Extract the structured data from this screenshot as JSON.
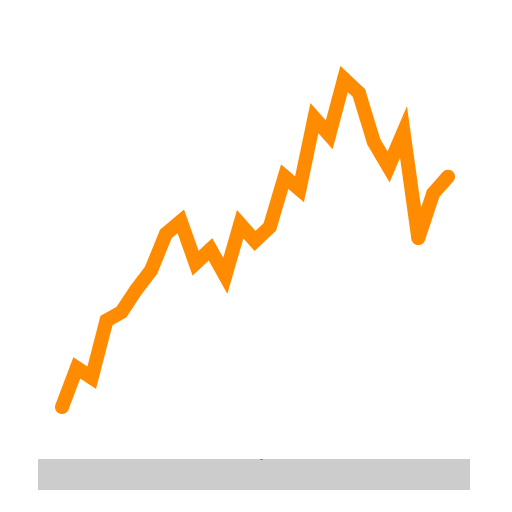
{
  "colors": {
    "line": "#ff8c00",
    "background": "#ffffff",
    "bar": "#cccccc"
  },
  "chart_data": {
    "type": "line",
    "x": [
      0,
      1,
      2,
      3,
      4,
      5,
      6,
      7,
      8,
      9,
      10,
      11,
      12,
      13,
      14,
      15,
      16,
      17,
      18,
      19,
      20,
      21,
      22,
      23,
      24,
      25,
      26
    ],
    "series": [
      {
        "values": [
          5,
          33,
          26,
          67,
          73,
          89,
          103,
          129,
          138,
          108,
          118,
          99,
          136,
          124,
          134,
          170,
          161,
          212,
          200,
          240,
          230,
          195,
          177,
          202,
          126,
          158,
          170
        ]
      }
    ],
    "xlim": [
      0,
      26
    ],
    "ylim": [
      0,
      245
    ],
    "grid": false,
    "legend": "none"
  }
}
